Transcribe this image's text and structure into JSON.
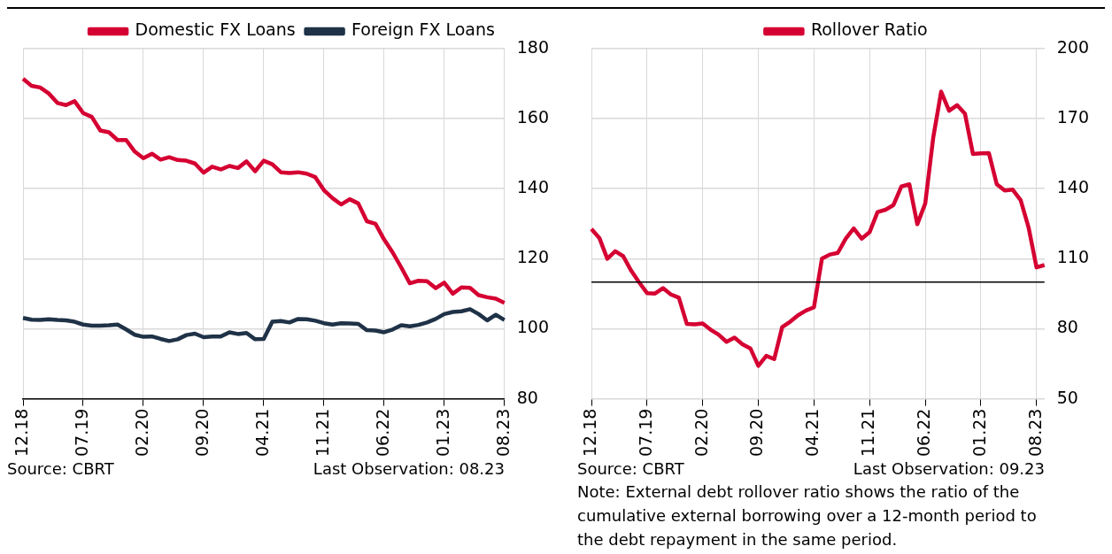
{
  "chart_data": [
    {
      "type": "line",
      "categories": [
        "12.18",
        null,
        null,
        null,
        null,
        null,
        null,
        "07.19",
        null,
        null,
        null,
        null,
        null,
        null,
        "02.20",
        null,
        null,
        null,
        null,
        null,
        null,
        "09.20",
        null,
        null,
        null,
        null,
        null,
        null,
        "04.21",
        null,
        null,
        null,
        null,
        null,
        null,
        "11.21",
        null,
        null,
        null,
        null,
        null,
        null,
        "06.22",
        null,
        null,
        null,
        null,
        null,
        null,
        "01.23",
        null,
        null,
        null,
        null,
        null,
        null,
        "08.23"
      ],
      "series": [
        {
          "name": "Domestic FX Loans",
          "color": "#d50032",
          "values": [
            171.4,
            169.4,
            168.9,
            167.2,
            164.5,
            163.9,
            165.0,
            161.6,
            160.5,
            156.6,
            156.1,
            153.9,
            153.9,
            150.6,
            148.7,
            150.0,
            148.3,
            149.0,
            148.2,
            148.0,
            147.2,
            144.6,
            146.3,
            145.5,
            146.5,
            145.9,
            147.8,
            145.0,
            148.0,
            147.0,
            144.7,
            144.5,
            144.7,
            144.3,
            143.3,
            139.6,
            137.3,
            135.5,
            137.0,
            135.8,
            130.7,
            130.0,
            125.5,
            121.8,
            117.5,
            113.0,
            113.7,
            113.6,
            111.6,
            113.2,
            110.0,
            111.8,
            111.7,
            109.6,
            109.0,
            108.6,
            107.4
          ]
        },
        {
          "name": "Foreign FX Loans",
          "color": "#1f3247",
          "values": [
            103.1,
            102.6,
            102.5,
            102.7,
            102.5,
            102.4,
            102.0,
            101.2,
            100.9,
            100.9,
            101.0,
            101.2,
            99.8,
            98.3,
            97.7,
            97.8,
            97.1,
            96.5,
            97.0,
            98.2,
            98.6,
            97.6,
            97.8,
            97.8,
            99.0,
            98.5,
            98.8,
            97.0,
            97.1,
            102.0,
            102.2,
            101.8,
            102.8,
            102.7,
            102.3,
            101.6,
            101.2,
            101.6,
            101.5,
            101.4,
            99.6,
            99.5,
            99.0,
            99.8,
            101.0,
            100.7,
            101.1,
            101.8,
            102.8,
            104.2,
            104.8,
            105.0,
            105.6,
            104.2,
            102.4,
            104.0,
            102.5
          ]
        }
      ],
      "ylim": [
        80,
        180
      ],
      "yticks": [
        80,
        100,
        120,
        140,
        160,
        180
      ],
      "grid": true,
      "legend": "top",
      "annotations": [
        "Source: CBRT",
        "Last Observation: 08.23"
      ]
    },
    {
      "type": "line",
      "categories": [
        "12.18",
        null,
        null,
        null,
        null,
        null,
        null,
        "07.19",
        null,
        null,
        null,
        null,
        null,
        null,
        "02.20",
        null,
        null,
        null,
        null,
        null,
        null,
        "09.20",
        null,
        null,
        null,
        null,
        null,
        null,
        "04.21",
        null,
        null,
        null,
        null,
        null,
        null,
        "11.21",
        null,
        null,
        null,
        null,
        null,
        null,
        "06.22",
        null,
        null,
        null,
        null,
        null,
        null,
        "01.23",
        null,
        null,
        null,
        null,
        null,
        null,
        "08.23",
        null
      ],
      "series": [
        {
          "name": "Rollover Ratio",
          "color": "#d50032",
          "values": [
            122.7,
            118.9,
            110.0,
            113.2,
            111.1,
            104.9,
            99.9,
            95.3,
            95.1,
            97.4,
            94.7,
            93.3,
            82.1,
            81.9,
            82.3,
            79.6,
            77.5,
            74.4,
            76.2,
            73.4,
            71.6,
            64.1,
            68.4,
            67.0,
            80.7,
            83.0,
            85.8,
            87.8,
            89.2,
            110.0,
            111.8,
            112.5,
            118.6,
            123.0,
            118.6,
            121.4,
            130.0,
            131.0,
            133.0,
            141.0,
            141.9,
            124.8,
            133.7,
            161.8,
            181.6,
            173.4,
            175.8,
            172.1,
            154.9,
            155.2,
            155.3,
            141.9,
            139.2,
            139.6,
            135.1,
            123.4,
            106.3,
            107.3
          ]
        }
      ],
      "ylim": [
        50,
        200
      ],
      "yticks": [
        50,
        80,
        110,
        140,
        170,
        200
      ],
      "grid": true,
      "legend": "top",
      "ref_lines": [
        {
          "axis": "y",
          "value": 100,
          "color": "#000000"
        }
      ],
      "annotations": [
        "Source: CBRT",
        "Last Observation: 09.23",
        "Note: External debt rollover ratio shows the ratio of the cumulative external borrowing over a 12-month period to the debt repayment in the same period."
      ]
    }
  ]
}
